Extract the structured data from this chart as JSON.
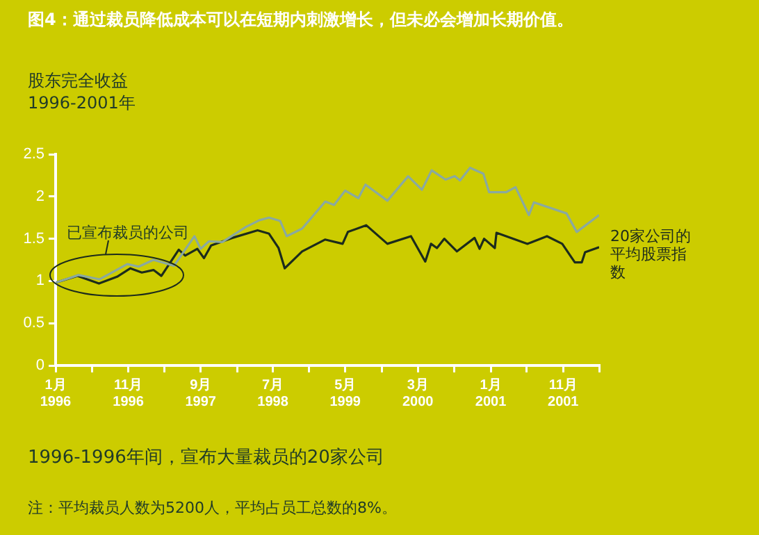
{
  "chart_data": {
    "type": "line",
    "title": "图4：通过裁员降低成本可以在短期内刺激增长，但未必会增加长期价值。",
    "subtitle": "股东完全收益",
    "annotations": [
      "1996-2001年",
      "已宣布裁员的公司",
      "1996-1996年间，宣布大量裁员的20家公司",
      "注：平均裁员人数为5200人，平均占员工总数的8%。"
    ],
    "marker": "none",
    "line_style": "solid",
    "xlim": [
      "1996-01-01",
      "2002-04-01"
    ],
    "xticks": [
      {
        "value": "1996-01-01",
        "label": "1月\n1996"
      },
      {
        "value": "1996-06-01",
        "label": null
      },
      {
        "value": "1996-11-01",
        "label": "11月\n1996"
      },
      {
        "value": "1997-04-01",
        "label": null
      },
      {
        "value": "1997-09-01",
        "label": "9月\n1997"
      },
      {
        "value": "1998-02-01",
        "label": null
      },
      {
        "value": "1998-07-01",
        "label": "7月\n1998"
      },
      {
        "value": "1998-12-01",
        "label": null
      },
      {
        "value": "1999-05-01",
        "label": "5月\n1999"
      },
      {
        "value": "1999-10-01",
        "label": null
      },
      {
        "value": "2000-03-01",
        "label": "3月\n2000"
      },
      {
        "value": "2000-08-01",
        "label": null
      },
      {
        "value": "2001-01-01",
        "label": "1月\n2001"
      },
      {
        "value": "2001-06-01",
        "label": null
      },
      {
        "value": "2001-11-01",
        "label": "11月\n2001"
      },
      {
        "value": "2002-04-01",
        "label": null
      }
    ],
    "ylim": [
      0,
      2.5
    ],
    "yticks": [
      0,
      0.5,
      1,
      1.5,
      2,
      2.5
    ],
    "series": [
      {
        "color": "#8aa9a0",
        "x": [
          "1996-01-01",
          "1996-04-06",
          "1996-07-04",
          "1996-10-28",
          "1996-12-15",
          "1997-02-15",
          "1997-05-12",
          "1997-08-06",
          "1997-09-01",
          "1997-10-06",
          "1997-12-01",
          "1998-03-10",
          "1998-05-06",
          "1998-06-15",
          "1998-08-01",
          "1998-08-28",
          "1998-11-01",
          "1999-02-06",
          "1999-03-15",
          "1999-05-01",
          "1999-06-25",
          "1999-07-25",
          "1999-10-25",
          "2000-01-20",
          "2000-03-18",
          "2000-04-28",
          "2000-06-25",
          "2000-08-03",
          "2000-08-25",
          "2000-10-06",
          "2000-12-01",
          "2000-12-25",
          "2001-03-06",
          "2001-04-15",
          "2001-06-10",
          "2001-07-01",
          "2001-11-15",
          "2001-12-28",
          "2002-04-01"
        ],
        "values": [
          0.98,
          1.07,
          1.02,
          1.2,
          1.17,
          1.25,
          1.18,
          1.53,
          1.38,
          1.47,
          1.46,
          1.64,
          1.72,
          1.75,
          1.71,
          1.53,
          1.62,
          1.94,
          1.9,
          2.07,
          1.98,
          2.14,
          1.95,
          2.24,
          2.08,
          2.31,
          2.2,
          2.24,
          2.19,
          2.34,
          2.27,
          2.05,
          2.05,
          2.11,
          1.78,
          1.93,
          1.8,
          1.58,
          1.78
        ]
      },
      {
        "name": "20家公司的平均股票指数",
        "color": "#1c2b1c",
        "x": [
          "1996-01-01",
          "1996-04-01",
          "1996-07-01",
          "1996-09-15",
          "1996-11-10",
          "1996-12-28",
          "1997-02-15",
          "1997-03-20",
          "1997-06-01",
          "1997-06-28",
          "1997-08-18",
          "1997-09-15",
          "1997-10-15",
          "1998-01-12",
          "1998-04-28",
          "1998-06-15",
          "1998-07-25",
          "1998-08-20",
          "1998-11-01",
          "1999-02-05",
          "1999-04-20",
          "1999-05-12",
          "1999-07-28",
          "1999-10-25",
          "2000-02-01",
          "2000-04-01",
          "2000-04-25",
          "2000-05-20",
          "2000-06-20",
          "2000-08-12",
          "2000-10-25",
          "2000-11-15",
          "2000-12-04",
          "2001-01-18",
          "2001-01-25",
          "2001-06-04",
          "2001-08-25",
          "2001-10-28",
          "2001-12-20",
          "2002-01-18",
          "2002-02-01",
          "2002-04-01"
        ],
        "values": [
          0.98,
          1.06,
          0.97,
          1.05,
          1.15,
          1.1,
          1.13,
          1.06,
          1.37,
          1.3,
          1.38,
          1.27,
          1.42,
          1.51,
          1.6,
          1.56,
          1.39,
          1.15,
          1.35,
          1.49,
          1.44,
          1.58,
          1.66,
          1.44,
          1.53,
          1.23,
          1.44,
          1.39,
          1.5,
          1.35,
          1.51,
          1.38,
          1.5,
          1.39,
          1.57,
          1.44,
          1.53,
          1.44,
          1.22,
          1.22,
          1.34,
          1.4
        ]
      }
    ]
  }
}
